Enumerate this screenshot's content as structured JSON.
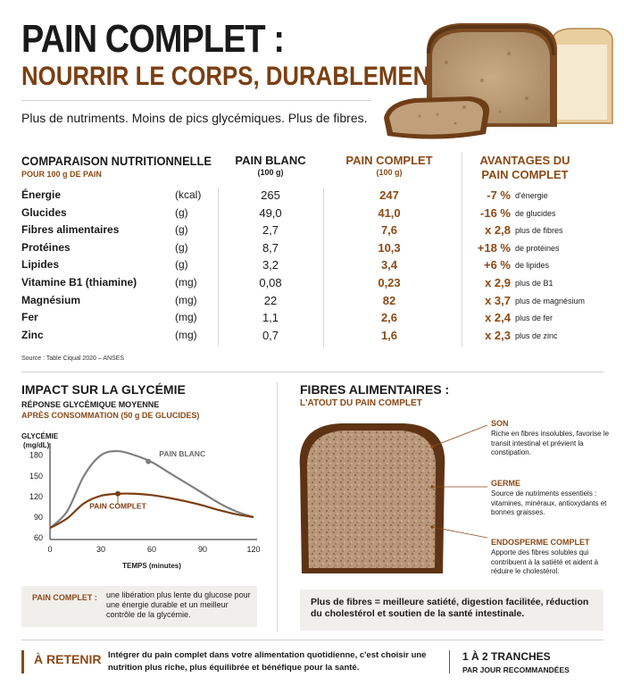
{
  "header": {
    "title": "PAIN COMPLET :",
    "subtitle_line": "NOURRIR LE CORPS, DURABLEMENT",
    "tagline": "Plus de nutriments. Moins de pics glycémiques. Plus de fibres."
  },
  "table": {
    "title": "COMPARAISON NUTRITIONNELLE",
    "per": "POUR 100 g DE PAIN",
    "col_white": "PAIN BLANC",
    "col_white_sub": "(100 g)",
    "col_whole": "PAIN COMPLET",
    "col_whole_sub": "(100 g)",
    "col_adv_1": "AVANTAGES DU",
    "col_adv_2": "PAIN COMPLET",
    "rows": [
      {
        "label": "Énergie",
        "unit": "(kcal)",
        "white": "265",
        "whole": "247",
        "adv": "-7 %",
        "adv_text": "d'énergie"
      },
      {
        "label": "Glucides",
        "unit": "(g)",
        "white": "49,0",
        "whole": "41,0",
        "adv": "-16 %",
        "adv_text": "de glucides"
      },
      {
        "label": "Fibres alimentaires",
        "unit": "(g)",
        "white": "2,7",
        "whole": "7,6",
        "adv": "x 2,8",
        "adv_text": "plus de fibres"
      },
      {
        "label": "Protéines",
        "unit": "(g)",
        "white": "8,7",
        "whole": "10,3",
        "adv": "+18 %",
        "adv_text": "de protéines"
      },
      {
        "label": "Lipides",
        "unit": "(g)",
        "white": "3,2",
        "whole": "3,4",
        "adv": "+6 %",
        "adv_text": "de lipides"
      },
      {
        "label": "Vitamine B1 (thiamine)",
        "unit": "(mg)",
        "white": "0,08",
        "whole": "0,23",
        "adv": "x 2,9",
        "adv_text": "plus de B1"
      },
      {
        "label": "Magnésium",
        "unit": "(mg)",
        "white": "22",
        "whole": "82",
        "adv": "x 3,7",
        "adv_text": "plus de magnésium"
      },
      {
        "label": "Fer",
        "unit": "(mg)",
        "white": "1,1",
        "whole": "2,6",
        "adv": "x 2,4",
        "adv_text": "plus de fer"
      },
      {
        "label": "Zinc",
        "unit": "(mg)",
        "white": "0,7",
        "whole": "1,6",
        "adv": "x 2,3",
        "adv_text": "plus de zinc"
      }
    ],
    "source": "Source : Table Ciqual 2020 – ANSES"
  },
  "glycemia": {
    "title": "IMPACT SUR LA GLYCÉMIE",
    "sub1": "RÉPONSE GLYCÉMIQUE MOYENNE",
    "sub2": "APRÈS CONSOMMATION (50 g DE GLUCIDES)",
    "box_label": "PAIN COMPLET :",
    "box_text": "une libération plus lente du glucose pour une énergie durable et un meilleur contrôle de la glycémie."
  },
  "chart_data": {
    "type": "line",
    "ylabel_1": "GLYCÉMIE",
    "ylabel_2": "(mg/dL)",
    "xlabel": "TEMPS (minutes)",
    "xlim": [
      0,
      120
    ],
    "ylim": [
      60,
      190
    ],
    "xticks": [
      "0",
      "30",
      "60",
      "90",
      "120"
    ],
    "yticks": [
      "60",
      "90",
      "120",
      "150",
      "180"
    ],
    "xtick_values": [
      0,
      30,
      60,
      90,
      120
    ],
    "ytick_values": [
      60,
      90,
      120,
      150,
      180
    ],
    "series": [
      {
        "name": "PAIN BLANC",
        "color": "#808080",
        "x": [
          0,
          10,
          20,
          30,
          40,
          50,
          60,
          70,
          80,
          90,
          100,
          110,
          120
        ],
        "y": [
          74,
          98,
          150,
          180,
          186,
          180,
          170,
          155,
          140,
          125,
          110,
          98,
          90
        ]
      },
      {
        "name": "PAIN COMPLET",
        "color": "#7b3f12",
        "x": [
          0,
          10,
          20,
          30,
          40,
          50,
          60,
          70,
          80,
          90,
          100,
          110,
          120
        ],
        "y": [
          74,
          88,
          110,
          121,
          124,
          124,
          122,
          118,
          113,
          107,
          100,
          94,
          90
        ]
      }
    ],
    "markers": [
      {
        "series": "PAIN BLANC",
        "x": 58,
        "y": 171
      },
      {
        "series": "PAIN COMPLET",
        "x": 40,
        "y": 124
      }
    ],
    "grid": false
  },
  "fibres": {
    "title": "FIBRES ALIMENTAIRES :",
    "subtitle": "L'ATOUT DU PAIN COMPLET",
    "items": [
      {
        "head": "SON",
        "text": "Riche en fibres insolubles, favorise le transit intestinal et prévient la constipation."
      },
      {
        "head": "GERME",
        "text": "Source de nutriments essentiels : vitamines, minéraux, antioxydants et bonnes graisses."
      },
      {
        "head": "ENDOSPERME COMPLET",
        "text": "Apporte des fibres solubles qui contribuent à la satiété et aident à réduire le cholestérol."
      }
    ],
    "box_text": "Plus de fibres = meilleure satiété, digestion facilitée, réduction du cholestérol et soutien de la santé intestinale."
  },
  "footer": {
    "retenir": "À RETENIR",
    "text": "Intégrer du pain complet dans votre alimentation quotidienne, c'est choisir une nutrition plus riche, plus équilibrée et bénéfique pour la santé.",
    "slices": "1 À 2 TRANCHES",
    "slices_sub": "PAR JOUR RECOMMANDÉES"
  },
  "colors": {
    "accent": "#8a4a16",
    "grey_line": "#808080",
    "box_bg": "#f1efec"
  }
}
